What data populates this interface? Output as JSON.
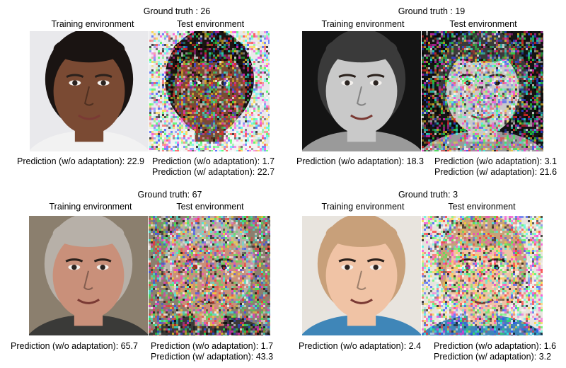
{
  "panels": [
    {
      "ground_truth": "Ground truth : 26",
      "train_label": "Training environment",
      "test_label": "Test environment",
      "pred_train": "Prediction (w/o adaptation): 22.9",
      "pred_test_wo": "Prediction (w/o adaptation): 1.7",
      "pred_test_w": "Prediction (w/ adaptation): 22.7",
      "skin": "#7a4a33",
      "hair": "#1a1412",
      "bg": "#e9e9ec",
      "shirt": "#f2f2f2",
      "subject": "young man face"
    },
    {
      "ground_truth": "Ground truth : 19",
      "train_label": "Training environment",
      "test_label": "Test environment",
      "pred_train": "Prediction (w/o adaptation): 18.3",
      "pred_test_wo": "Prediction (w/o adaptation): 3.1",
      "pred_test_w": "Prediction (w/ adaptation): 21.6",
      "skin": "#c9c9c9",
      "hair": "#3a3a3a",
      "bg": "#141414",
      "shirt": "#9a9a9a",
      "subject": "young woman face, grayscale"
    },
    {
      "ground_truth": "Ground truth: 67",
      "train_label": "Training environment",
      "test_label": "Test environment",
      "pred_train": "Prediction (w/o adaptation): 65.7",
      "pred_test_wo": "Prediction (w/o adaptation): 1.7",
      "pred_test_w": "Prediction (w/ adaptation): 43.3",
      "skin": "#c9907a",
      "hair": "#b7b0a8",
      "bg": "#8b7f6e",
      "shirt": "#3a3a38",
      "subject": "older man face with glasses"
    },
    {
      "ground_truth": "Ground truth: 3",
      "train_label": "Training environment",
      "test_label": "Test environment",
      "pred_train": "Prediction (w/o adaptation): 2.4",
      "pred_test_wo": "Prediction (w/o adaptation): 1.6",
      "pred_test_w": "Prediction (w/ adaptation): 3.2",
      "skin": "#f0c3a5",
      "hair": "#c8a07a",
      "bg": "#e8e4de",
      "shirt": "#3f86b8",
      "subject": "toddler face"
    }
  ]
}
